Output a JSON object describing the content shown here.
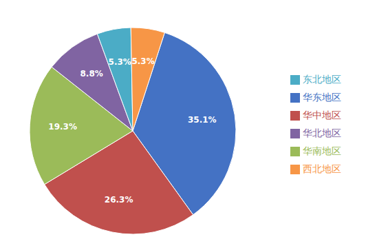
{
  "chart_data": {
    "type": "pie",
    "categories": [
      "华东地区",
      "华中地区",
      "华南地区",
      "华北地区",
      "东北地区",
      "西北地区"
    ],
    "values": [
      35.1,
      26.3,
      19.3,
      8.8,
      5.3,
      5.3
    ],
    "value_labels": [
      "35.1%",
      "26.3%",
      "19.3%",
      "8.8%",
      "5.3%",
      "5.3%"
    ],
    "colors": [
      "#4472C4",
      "#C0504D",
      "#9BBB59",
      "#8064A2",
      "#4BACC6",
      "#F79646"
    ],
    "data_labels": true,
    "legend": "right"
  }
}
